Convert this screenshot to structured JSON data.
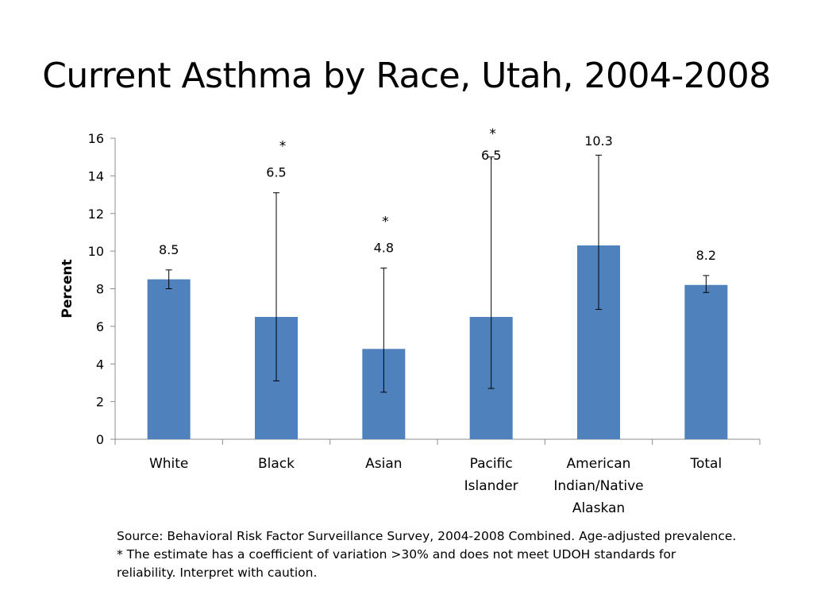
{
  "title": "Current Asthma by Race, Utah, 2004-2008",
  "colors": {
    "bar": "#4F81BD",
    "axis": "#8C8C8C",
    "error": "#000000"
  },
  "chart_data": {
    "type": "bar",
    "title": "",
    "ylabel": "Percent",
    "xlabel": "",
    "ylim": [
      0,
      16
    ],
    "yticks": [
      0,
      2,
      4,
      6,
      8,
      10,
      12,
      14,
      16
    ],
    "grid": false,
    "legend": "none",
    "categories": [
      [
        "White"
      ],
      [
        "Black"
      ],
      [
        "Asian"
      ],
      [
        "Pacific",
        "Islander"
      ],
      [
        "American",
        "Indian/Native",
        "Alaskan"
      ],
      [
        "Total"
      ]
    ],
    "values": [
      8.5,
      6.5,
      4.8,
      6.5,
      10.3,
      8.2
    ],
    "data_labels": [
      "8.5",
      "6.5",
      "4.8",
      "6.5",
      "10.3",
      "8.2"
    ],
    "error_low": [
      8.0,
      3.1,
      2.5,
      2.7,
      6.9,
      7.8
    ],
    "error_high": [
      9.0,
      13.1,
      9.1,
      15.0,
      15.1,
      8.7
    ],
    "flags": [
      "",
      "*",
      "*",
      "*",
      "",
      ""
    ]
  },
  "source_lines": [
    "Source: Behavioral Risk Factor Surveillance Survey, 2004-2008 Combined. Age-adjusted prevalence.",
    "* The estimate has a coefficient of variation >30% and does not meet UDOH standards for",
    "reliability. Interpret with caution."
  ]
}
